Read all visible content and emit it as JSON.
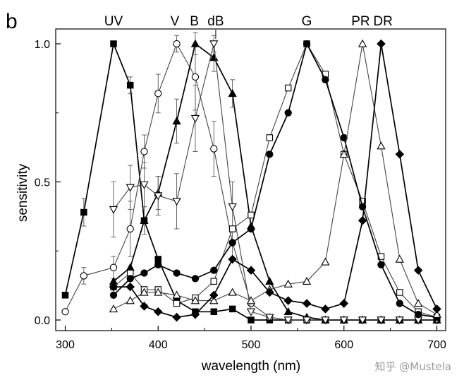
{
  "panel_label": "b",
  "watermark": "知乎 @Mustela",
  "chart_data": {
    "type": "line",
    "xlabel": "wavelength (nm)",
    "ylabel": "sensitivity",
    "xlim": [
      300,
      700
    ],
    "ylim": [
      0,
      1.0
    ],
    "xticks": [
      {
        "v": 300,
        "label": "300"
      },
      {
        "v": 400,
        "label": "400"
      },
      {
        "v": 500,
        "label": "500"
      },
      {
        "v": 600,
        "label": "600"
      },
      {
        "v": 700,
        "label": "700"
      }
    ],
    "yticks": [
      {
        "v": 0,
        "label": "0.0"
      },
      {
        "v": 0.5,
        "label": "0.5"
      },
      {
        "v": 1.0,
        "label": "1.0"
      }
    ],
    "grid": false,
    "legend": "none",
    "peak_labels": [
      {
        "text": "UV",
        "x": 352
      },
      {
        "text": "V",
        "x": 418
      },
      {
        "text": "B",
        "x": 439
      },
      {
        "text": "dB",
        "x": 462
      },
      {
        "text": "G",
        "x": 560
      },
      {
        "text": "PR",
        "x": 618
      },
      {
        "text": "DR",
        "x": 642
      }
    ],
    "series": [
      {
        "marker": "square-filled",
        "peak": "UV",
        "points": [
          {
            "x": 300,
            "y": 0.09
          },
          {
            "x": 320,
            "y": 0.39,
            "err": 0.05
          },
          {
            "x": 352,
            "y": 1.0
          },
          {
            "x": 370,
            "y": 0.85,
            "err": 0.03
          },
          {
            "x": 385,
            "y": 0.36
          },
          {
            "x": 400,
            "y": 0.22
          },
          {
            "x": 420,
            "y": 0.07
          },
          {
            "x": 440,
            "y": 0.03
          },
          {
            "x": 460,
            "y": 0.03
          },
          {
            "x": 480,
            "y": 0.04
          },
          {
            "x": 500,
            "y": 0.0
          },
          {
            "x": 520,
            "y": 0.0
          },
          {
            "x": 540,
            "y": 0.0
          },
          {
            "x": 560,
            "y": 0.0
          },
          {
            "x": 580,
            "y": 0.0
          },
          {
            "x": 600,
            "y": 0.0
          },
          {
            "x": 620,
            "y": 0.0
          },
          {
            "x": 640,
            "y": 0.0
          },
          {
            "x": 660,
            "y": 0.0
          },
          {
            "x": 680,
            "y": 0.0
          },
          {
            "x": 700,
            "y": 0.0
          }
        ]
      },
      {
        "marker": "circle-open",
        "peak": "V",
        "points": [
          {
            "x": 300,
            "y": 0.03
          },
          {
            "x": 320,
            "y": 0.16,
            "err": 0.03
          },
          {
            "x": 352,
            "y": 0.19,
            "err": 0.04
          },
          {
            "x": 370,
            "y": 0.33,
            "err": 0.1
          },
          {
            "x": 385,
            "y": 0.61,
            "err": 0.06
          },
          {
            "x": 400,
            "y": 0.82,
            "err": 0.07
          },
          {
            "x": 420,
            "y": 1.0,
            "err": 0.03
          },
          {
            "x": 440,
            "y": 0.88,
            "err": 0.12
          },
          {
            "x": 460,
            "y": 0.62,
            "err": 0.1
          },
          {
            "x": 480,
            "y": 0.28,
            "err": 0.06
          },
          {
            "x": 500,
            "y": 0.06
          },
          {
            "x": 520,
            "y": 0.01
          },
          {
            "x": 540,
            "y": 0.0
          },
          {
            "x": 560,
            "y": 0.0
          },
          {
            "x": 580,
            "y": 0.0
          },
          {
            "x": 600,
            "y": 0.0
          },
          {
            "x": 620,
            "y": 0.0
          },
          {
            "x": 640,
            "y": 0.0
          },
          {
            "x": 660,
            "y": 0.0
          },
          {
            "x": 680,
            "y": 0.0
          },
          {
            "x": 700,
            "y": 0.0
          }
        ]
      },
      {
        "marker": "triangle-up-filled",
        "peak": "B",
        "points": [
          {
            "x": 352,
            "y": 0.14
          },
          {
            "x": 370,
            "y": 0.19
          },
          {
            "x": 385,
            "y": 0.36,
            "err": 0.05
          },
          {
            "x": 400,
            "y": 0.46,
            "err": 0.06
          },
          {
            "x": 420,
            "y": 0.72,
            "err": 0.08
          },
          {
            "x": 440,
            "y": 1.0,
            "err": 0.04
          },
          {
            "x": 460,
            "y": 0.95,
            "err": 0.05
          },
          {
            "x": 480,
            "y": 0.82,
            "err": 0.05
          },
          {
            "x": 500,
            "y": 0.34
          },
          {
            "x": 520,
            "y": 0.14
          },
          {
            "x": 540,
            "y": 0.03
          },
          {
            "x": 560,
            "y": 0.01
          },
          {
            "x": 580,
            "y": 0.0
          },
          {
            "x": 600,
            "y": 0.0
          },
          {
            "x": 620,
            "y": 0.0
          },
          {
            "x": 640,
            "y": 0.0
          },
          {
            "x": 660,
            "y": 0.0
          },
          {
            "x": 680,
            "y": 0.0
          },
          {
            "x": 700,
            "y": 0.0
          }
        ]
      },
      {
        "marker": "triangle-down-open",
        "peak": "dB",
        "points": [
          {
            "x": 352,
            "y": 0.4,
            "err": 0.1
          },
          {
            "x": 370,
            "y": 0.48,
            "err": 0.08
          },
          {
            "x": 385,
            "y": 0.49,
            "err": 0.08
          },
          {
            "x": 400,
            "y": 0.45,
            "err": 0.07
          },
          {
            "x": 420,
            "y": 0.43,
            "err": 0.1
          },
          {
            "x": 440,
            "y": 0.73,
            "err": 0.12
          },
          {
            "x": 460,
            "y": 1.0,
            "err": 0.03
          },
          {
            "x": 480,
            "y": 0.41,
            "err": 0.09
          },
          {
            "x": 500,
            "y": 0.03
          },
          {
            "x": 520,
            "y": 0.01
          },
          {
            "x": 540,
            "y": 0.0
          },
          {
            "x": 560,
            "y": 0.0
          },
          {
            "x": 580,
            "y": 0.0
          },
          {
            "x": 600,
            "y": 0.0
          },
          {
            "x": 620,
            "y": 0.0
          },
          {
            "x": 640,
            "y": 0.0
          },
          {
            "x": 660,
            "y": 0.0
          },
          {
            "x": 680,
            "y": 0.0
          },
          {
            "x": 700,
            "y": 0.0
          }
        ]
      },
      {
        "marker": "square-open",
        "peak": "G",
        "points": [
          {
            "x": 352,
            "y": 0.12
          },
          {
            "x": 370,
            "y": 0.17
          },
          {
            "x": 385,
            "y": 0.11
          },
          {
            "x": 400,
            "y": 0.11
          },
          {
            "x": 420,
            "y": 0.06
          },
          {
            "x": 440,
            "y": 0.08
          },
          {
            "x": 460,
            "y": 0.14
          },
          {
            "x": 480,
            "y": 0.33
          },
          {
            "x": 500,
            "y": 0.38
          },
          {
            "x": 520,
            "y": 0.66
          },
          {
            "x": 540,
            "y": 0.84
          },
          {
            "x": 560,
            "y": 1.0
          },
          {
            "x": 580,
            "y": 0.89
          },
          {
            "x": 600,
            "y": 0.6
          },
          {
            "x": 620,
            "y": 0.43
          },
          {
            "x": 640,
            "y": 0.23
          },
          {
            "x": 660,
            "y": 0.1
          },
          {
            "x": 680,
            "y": 0.03
          },
          {
            "x": 700,
            "y": 0.01
          }
        ]
      },
      {
        "marker": "circle-filled",
        "peak": "G",
        "points": [
          {
            "x": 352,
            "y": 0.09
          },
          {
            "x": 370,
            "y": 0.15
          },
          {
            "x": 385,
            "y": 0.17
          },
          {
            "x": 400,
            "y": 0.2
          },
          {
            "x": 420,
            "y": 0.17
          },
          {
            "x": 440,
            "y": 0.15
          },
          {
            "x": 460,
            "y": 0.18
          },
          {
            "x": 480,
            "y": 0.28
          },
          {
            "x": 500,
            "y": 0.33
          },
          {
            "x": 520,
            "y": 0.6
          },
          {
            "x": 540,
            "y": 0.75
          },
          {
            "x": 560,
            "y": 1.0
          },
          {
            "x": 580,
            "y": 0.87
          },
          {
            "x": 600,
            "y": 0.66
          },
          {
            "x": 620,
            "y": 0.41
          },
          {
            "x": 640,
            "y": 0.2
          },
          {
            "x": 660,
            "y": 0.06
          },
          {
            "x": 680,
            "y": 0.02
          },
          {
            "x": 700,
            "y": 0.01
          }
        ]
      },
      {
        "marker": "triangle-up-open",
        "peak": "PR",
        "points": [
          {
            "x": 352,
            "y": 0.04
          },
          {
            "x": 370,
            "y": 0.07
          },
          {
            "x": 385,
            "y": 0.1
          },
          {
            "x": 400,
            "y": 0.1
          },
          {
            "x": 420,
            "y": 0.09
          },
          {
            "x": 440,
            "y": 0.07
          },
          {
            "x": 460,
            "y": 0.07
          },
          {
            "x": 480,
            "y": 0.1
          },
          {
            "x": 500,
            "y": 0.07
          },
          {
            "x": 520,
            "y": 0.11
          },
          {
            "x": 540,
            "y": 0.13
          },
          {
            "x": 560,
            "y": 0.14
          },
          {
            "x": 580,
            "y": 0.21
          },
          {
            "x": 600,
            "y": 0.6
          },
          {
            "x": 620,
            "y": 1.0
          },
          {
            "x": 640,
            "y": 0.63
          },
          {
            "x": 660,
            "y": 0.22
          },
          {
            "x": 680,
            "y": 0.06
          },
          {
            "x": 700,
            "y": 0.02
          }
        ]
      },
      {
        "marker": "diamond-filled",
        "peak": "DR",
        "points": [
          {
            "x": 352,
            "y": 0.12
          },
          {
            "x": 370,
            "y": 0.12
          },
          {
            "x": 385,
            "y": 0.05
          },
          {
            "x": 400,
            "y": 0.03
          },
          {
            "x": 420,
            "y": 0.01
          },
          {
            "x": 440,
            "y": 0.02
          },
          {
            "x": 460,
            "y": 0.09
          },
          {
            "x": 480,
            "y": 0.22
          },
          {
            "x": 500,
            "y": 0.18
          },
          {
            "x": 520,
            "y": 0.1
          },
          {
            "x": 540,
            "y": 0.07
          },
          {
            "x": 560,
            "y": 0.06
          },
          {
            "x": 580,
            "y": 0.04
          },
          {
            "x": 600,
            "y": 0.06
          },
          {
            "x": 620,
            "y": 0.36
          },
          {
            "x": 640,
            "y": 1.0
          },
          {
            "x": 660,
            "y": 0.6
          },
          {
            "x": 680,
            "y": 0.18
          },
          {
            "x": 700,
            "y": 0.04
          }
        ]
      }
    ]
  }
}
